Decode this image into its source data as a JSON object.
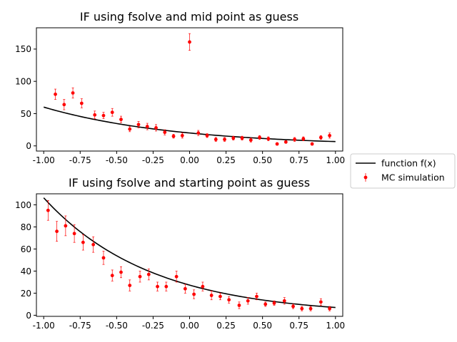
{
  "chart_data": [
    {
      "type": "scatter",
      "title": "IF using fsolve and mid point as guess",
      "xlabel": "",
      "ylabel": "",
      "xlim": [
        -1.05,
        1.05
      ],
      "ylim": [
        -8,
        183
      ],
      "xticks": [
        "-1.00",
        "-0.75",
        "-0.50",
        "-0.25",
        "0.00",
        "0.25",
        "0.50",
        "0.75",
        "1.00"
      ],
      "yticks": [
        "0",
        "50",
        "100",
        "150"
      ],
      "grid": false,
      "series": [
        {
          "name": "function f(x)",
          "type": "line",
          "color": "#000000",
          "function": {
            "a": 20,
            "b": 1.1,
            "note": ""
          },
          "x_range": [
            -1.0,
            1.0
          ]
        },
        {
          "name": "MC simulation",
          "type": "errorbar",
          "color": "#ff0000",
          "x": [
            -0.92,
            -0.86,
            -0.8,
            -0.74,
            -0.65,
            -0.59,
            -0.53,
            -0.47,
            -0.41,
            -0.35,
            -0.29,
            -0.23,
            -0.17,
            -0.11,
            -0.05,
            0.0,
            0.06,
            0.12,
            0.18,
            0.24,
            0.3,
            0.36,
            0.42,
            0.48,
            0.54,
            0.6,
            0.66,
            0.72,
            0.78,
            0.84,
            0.9,
            0.96
          ],
          "y": [
            80,
            64,
            82,
            66,
            48,
            47,
            52,
            41,
            26,
            33,
            30,
            28,
            21,
            15,
            16,
            161,
            20,
            16,
            10,
            10,
            12,
            12,
            9,
            13,
            11,
            3,
            6,
            10,
            11,
            3,
            13,
            16
          ],
          "yerr": [
            8,
            8,
            8,
            7,
            6,
            5,
            6,
            5,
            4,
            5,
            5,
            5,
            4,
            3,
            4,
            13,
            4,
            3,
            3,
            3,
            3,
            3,
            3,
            3,
            3,
            2,
            2,
            3,
            3,
            2,
            3,
            4
          ]
        }
      ]
    },
    {
      "type": "scatter",
      "title": "IF using fsolve and starting point as guess",
      "xlabel": "",
      "ylabel": "",
      "xlim": [
        -1.05,
        1.05
      ],
      "ylim": [
        -1,
        110
      ],
      "xticks": [
        "-1.00",
        "-0.75",
        "-0.50",
        "-0.25",
        "0.00",
        "0.25",
        "0.50",
        "0.75",
        "1.00"
      ],
      "yticks": [
        "0",
        "20",
        "40",
        "60",
        "80",
        "100"
      ],
      "grid": false,
      "series": [
        {
          "name": "function f(x)",
          "type": "line",
          "color": "#000000",
          "function": {
            "a": 27.3,
            "b": 1.36
          },
          "x_range": [
            -1.0,
            1.0
          ]
        },
        {
          "name": "MC simulation",
          "type": "errorbar",
          "color": "#ff0000",
          "x": [
            -0.97,
            -0.91,
            -0.85,
            -0.79,
            -0.73,
            -0.66,
            -0.59,
            -0.53,
            -0.47,
            -0.41,
            -0.34,
            -0.28,
            -0.22,
            -0.16,
            -0.09,
            -0.03,
            0.03,
            0.09,
            0.15,
            0.21,
            0.27,
            0.34,
            0.4,
            0.46,
            0.52,
            0.58,
            0.65,
            0.71,
            0.77,
            0.83,
            0.9,
            0.96
          ],
          "y": [
            95,
            76,
            81,
            74,
            66,
            64,
            52,
            36,
            39,
            27,
            35,
            37,
            26,
            26,
            35,
            24,
            19,
            26,
            18,
            17,
            14,
            9,
            13,
            17,
            10,
            11,
            13,
            8,
            6,
            6,
            12,
            6
          ],
          "yerr": [
            9,
            9,
            9,
            8,
            7,
            7,
            6,
            5,
            5,
            5,
            5,
            5,
            4,
            4,
            5,
            4,
            4,
            4,
            4,
            3,
            3,
            3,
            3,
            3,
            2,
            2,
            3,
            2,
            2,
            2,
            3,
            2
          ]
        }
      ]
    }
  ],
  "legend": {
    "placement": "right",
    "entries": [
      {
        "label": "function f(x)",
        "kind": "line",
        "color": "#000000"
      },
      {
        "label": "MC simulation",
        "kind": "errorbar",
        "color": "#ff0000"
      }
    ]
  }
}
